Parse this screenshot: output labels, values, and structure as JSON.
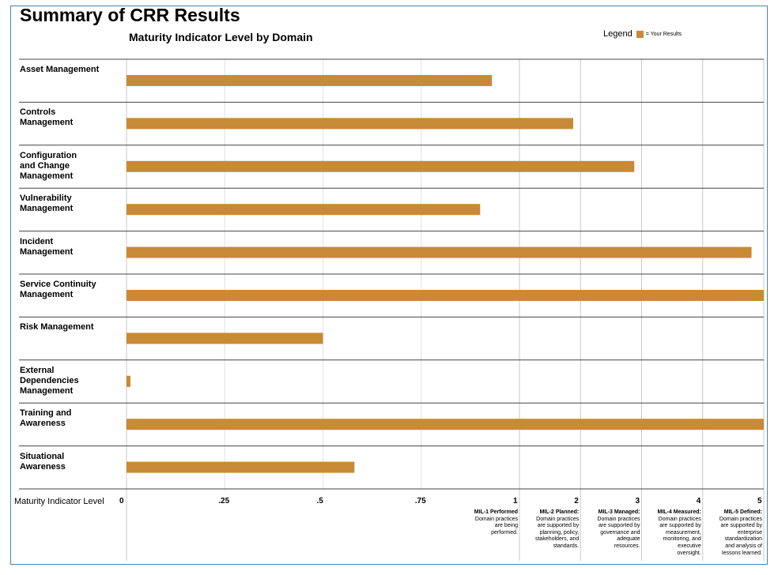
{
  "header": {
    "title": "Summary of CRR Results",
    "subtitle": "Maturity Indicator Level by Domain",
    "legend_label": "Legend",
    "legend_entry": "= Your Results"
  },
  "colors": {
    "bar": "#c98a35",
    "frame": "#4a86a8",
    "grid": "#c8c8c8",
    "rule": "#444444"
  },
  "chart_data": {
    "type": "bar",
    "orientation": "horizontal",
    "title": "Maturity Indicator Level by Domain",
    "xlabel": "Maturity Indicator Level",
    "categories": [
      "Asset Management",
      "Controls Management",
      "Configuration and Change Management",
      "Vulnerability Management",
      "Incident Management",
      "Service Continuity Management",
      "Risk Management",
      "External Dependencies Management",
      "Training and Awareness",
      "Situational Awareness"
    ],
    "category_lines": [
      [
        "Asset Management"
      ],
      [
        "Controls",
        "Management"
      ],
      [
        "Configuration",
        "and Change",
        "Management"
      ],
      [
        "Vulnerability",
        "Management"
      ],
      [
        "Incident",
        "Management"
      ],
      [
        "Service Continuity",
        "Management"
      ],
      [
        "Risk Management"
      ],
      [
        "External",
        "Dependencies",
        "Management"
      ],
      [
        "Training and",
        "Awareness"
      ],
      [
        "Situational",
        "Awareness"
      ]
    ],
    "values": [
      0.93,
      1.88,
      2.88,
      0.9,
      4.8,
      5,
      0.5,
      0.01,
      5,
      0.58
    ],
    "scale_note": "axis is piecewise: 0 to 1 in quarters, then 1 to 5 in whole units",
    "ticks": [
      {
        "value": 0,
        "label": "0"
      },
      {
        "value": 0.25,
        "label": ".25"
      },
      {
        "value": 0.5,
        "label": ".5"
      },
      {
        "value": 0.75,
        "label": ".75"
      },
      {
        "value": 1,
        "label": "1"
      },
      {
        "value": 2,
        "label": "2"
      },
      {
        "value": 3,
        "label": "3"
      },
      {
        "value": 4,
        "label": "4"
      },
      {
        "value": 5,
        "label": "5"
      }
    ],
    "xlim": [
      0,
      5
    ],
    "legend": "top-right",
    "mil_levels": [
      {
        "level": 1,
        "name": "MIL-1 Performed",
        "lines": [
          "Domain practices",
          "are being",
          "performed."
        ]
      },
      {
        "level": 2,
        "name": "MIL-2 Planned:",
        "lines": [
          "Domain practices",
          "are supported by",
          "planning, policy,",
          "stakeholders, and",
          "standards."
        ]
      },
      {
        "level": 3,
        "name": "MIL-3 Managed:",
        "lines": [
          "Domain practices",
          "are supported by",
          "governance and",
          "adequate",
          "resources."
        ]
      },
      {
        "level": 4,
        "name": "MIL-4 Measured:",
        "lines": [
          "Domain practices",
          "are supported by",
          "measurement,",
          "monitoring, and",
          "executive",
          "oversight."
        ]
      },
      {
        "level": 5,
        "name": "MIL-5 Defined:",
        "lines": [
          "Domain practices",
          "are supported by",
          "enterprise",
          "standardization",
          "and analysis of",
          "lessons learned."
        ]
      }
    ]
  }
}
